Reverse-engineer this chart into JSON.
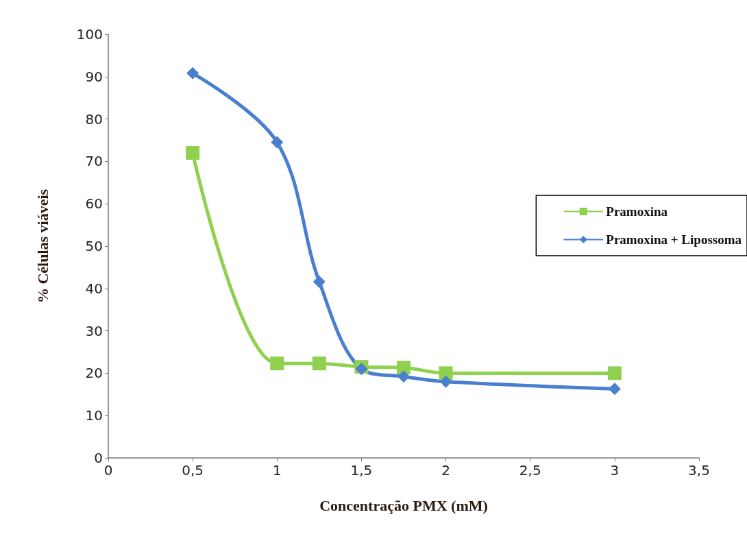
{
  "chart_data": {
    "type": "line",
    "xlabel": "Concentração PMX (mM)",
    "ylabel": "% Células viáveis",
    "xlim": [
      0,
      3.5
    ],
    "xticks": [
      0,
      {
        "value": 0.5,
        "label": "0,5"
      },
      1,
      {
        "value": 1.5,
        "label": "1,5"
      },
      2,
      {
        "value": 2.5,
        "label": "2,5"
      },
      3,
      {
        "value": 3.5,
        "label": "3,5"
      }
    ],
    "ylim": [
      0,
      100
    ],
    "yticks": [
      0,
      10,
      20,
      30,
      40,
      50,
      60,
      70,
      80,
      90,
      100
    ],
    "grid": false,
    "legend": "right",
    "line_style": "solid",
    "series": [
      {
        "name": "Pramoxina",
        "color": "#8fd14f",
        "marker": "square",
        "x": [
          0.5,
          1,
          1.25,
          1.5,
          1.75,
          2,
          3
        ],
        "values": [
          72,
          22.3,
          22.3,
          21.5,
          21.3,
          20,
          20
        ]
      },
      {
        "name": "Pramoxina + Lipossoma",
        "color": "#4a7fd0",
        "marker": "diamond",
        "x": [
          0.5,
          1,
          1.25,
          1.5,
          1.75,
          2,
          3
        ],
        "values": [
          90.8,
          74.5,
          41.6,
          21,
          19.2,
          18,
          16.3
        ]
      }
    ]
  }
}
